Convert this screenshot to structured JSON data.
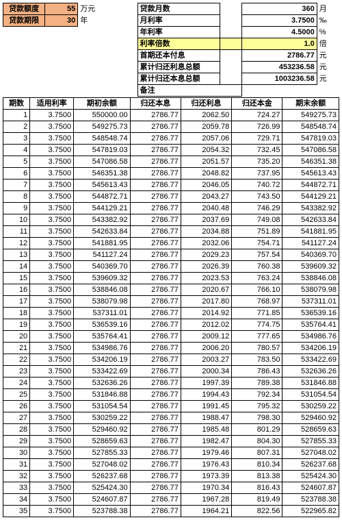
{
  "summary": {
    "amount_label": "贷款额度",
    "amount_value": "55",
    "amount_unit": "万元",
    "months_label": "贷款月数",
    "months_value": "360",
    "months_unit": "月",
    "term_label": "贷款期限",
    "term_value": "30",
    "term_unit": "年",
    "mrate_label": "月利率",
    "mrate_value": "3.7500",
    "mrate_unit": "‰",
    "yrate_label": "年利率",
    "yrate_value": "4.5000",
    "yrate_unit": "%",
    "mult_label": "利率倍数",
    "mult_value": "1.0",
    "mult_unit": "倍",
    "firstpay_label": "首期还本付息",
    "firstpay_value": "2786.77",
    "firstpay_unit": "元",
    "totint_label": "累计归还利息总额",
    "totint_value": "453236.58",
    "totint_unit": "元",
    "totpay_label": "累计归还本息总额",
    "totpay_value": "1003236.58",
    "totpay_unit": "元",
    "remark_label": "备注"
  },
  "columns": [
    "期数",
    "适用利率",
    "期初余额",
    "归还本息",
    "归还利息",
    "归还本金",
    "期末余额"
  ],
  "rows": [
    [
      "1",
      "3.7500",
      "550000.00",
      "2786.77",
      "2062.50",
      "724.27",
      "549275.73"
    ],
    [
      "2",
      "3.7500",
      "549275.73",
      "2786.77",
      "2059.78",
      "726.99",
      "548548.74"
    ],
    [
      "3",
      "3.7500",
      "548548.74",
      "2786.77",
      "2057.06",
      "729.71",
      "547819.03"
    ],
    [
      "4",
      "3.7500",
      "547819.03",
      "2786.77",
      "2054.32",
      "732.45",
      "547086.58"
    ],
    [
      "5",
      "3.7500",
      "547086.58",
      "2786.77",
      "2051.57",
      "735.20",
      "546351.38"
    ],
    [
      "6",
      "3.7500",
      "546351.38",
      "2786.77",
      "2048.82",
      "737.95",
      "545613.43"
    ],
    [
      "7",
      "3.7500",
      "545613.43",
      "2786.77",
      "2046.05",
      "740.72",
      "544872.71"
    ],
    [
      "8",
      "3.7500",
      "544872.71",
      "2786.77",
      "2043.27",
      "743.50",
      "544129.21"
    ],
    [
      "9",
      "3.7500",
      "544129.21",
      "2786.77",
      "2040.48",
      "746.29",
      "543382.92"
    ],
    [
      "10",
      "3.7500",
      "543382.92",
      "2786.77",
      "2037.69",
      "749.08",
      "542633.84"
    ],
    [
      "11",
      "3.7500",
      "542633.84",
      "2786.77",
      "2034.88",
      "751.89",
      "541881.95"
    ],
    [
      "12",
      "3.7500",
      "541881.95",
      "2786.77",
      "2032.06",
      "754.71",
      "541127.24"
    ],
    [
      "13",
      "3.7500",
      "541127.24",
      "2786.77",
      "2029.23",
      "757.54",
      "540369.70"
    ],
    [
      "14",
      "3.7500",
      "540369.70",
      "2786.77",
      "2026.39",
      "760.38",
      "539609.32"
    ],
    [
      "15",
      "3.7500",
      "539609.32",
      "2786.77",
      "2023.53",
      "763.24",
      "538846.08"
    ],
    [
      "16",
      "3.7500",
      "538846.08",
      "2786.77",
      "2020.67",
      "766.10",
      "538079.98"
    ],
    [
      "17",
      "3.7500",
      "538079.98",
      "2786.77",
      "2017.80",
      "768.97",
      "537311.01"
    ],
    [
      "18",
      "3.7500",
      "537311.01",
      "2786.77",
      "2014.92",
      "771.85",
      "536539.16"
    ],
    [
      "19",
      "3.7500",
      "536539.16",
      "2786.77",
      "2012.02",
      "774.75",
      "535764.41"
    ],
    [
      "20",
      "3.7500",
      "535764.41",
      "2786.77",
      "2009.12",
      "777.65",
      "534986.76"
    ],
    [
      "21",
      "3.7500",
      "534986.76",
      "2786.77",
      "2006.20",
      "780.57",
      "534206.19"
    ],
    [
      "22",
      "3.7500",
      "534206.19",
      "2786.77",
      "2003.27",
      "783.50",
      "533422.69"
    ],
    [
      "23",
      "3.7500",
      "533422.69",
      "2786.77",
      "2000.34",
      "786.43",
      "532636.26"
    ],
    [
      "24",
      "3.7500",
      "532636.26",
      "2786.77",
      "1997.39",
      "789.38",
      "531846.88"
    ],
    [
      "25",
      "3.7500",
      "531846.88",
      "2786.77",
      "1994.43",
      "792.34",
      "531054.54"
    ],
    [
      "26",
      "3.7500",
      "531054.54",
      "2786.77",
      "1991.45",
      "795.32",
      "530259.22"
    ],
    [
      "27",
      "3.7500",
      "530259.22",
      "2786.77",
      "1988.47",
      "798.30",
      "529460.92"
    ],
    [
      "28",
      "3.7500",
      "529460.92",
      "2786.77",
      "1985.48",
      "801.29",
      "528659.63"
    ],
    [
      "29",
      "3.7500",
      "528659.63",
      "2786.77",
      "1982.47",
      "804.30",
      "527855.33"
    ],
    [
      "30",
      "3.7500",
      "527855.33",
      "2786.77",
      "1979.46",
      "807.31",
      "527048.02"
    ],
    [
      "31",
      "3.7500",
      "527048.02",
      "2786.77",
      "1976.43",
      "810.34",
      "526237.68"
    ],
    [
      "32",
      "3.7500",
      "526237.68",
      "2786.77",
      "1973.39",
      "813.38",
      "525424.30"
    ],
    [
      "33",
      "3.7500",
      "525424.30",
      "2786.77",
      "1970.34",
      "816.43",
      "524607.87"
    ],
    [
      "34",
      "3.7500",
      "524607.87",
      "2786.77",
      "1967.28",
      "819.49",
      "523788.38"
    ],
    [
      "35",
      "3.7500",
      "523788.38",
      "2786.77",
      "1964.21",
      "822.56",
      "522965.82"
    ]
  ],
  "colwidths": [
    "38px",
    "62px",
    "80px",
    "72px",
    "72px",
    "72px",
    "80px"
  ],
  "header_bg": "#ffffff",
  "orange_bg": "#f4b183",
  "yellow_bg": "#ffff99"
}
